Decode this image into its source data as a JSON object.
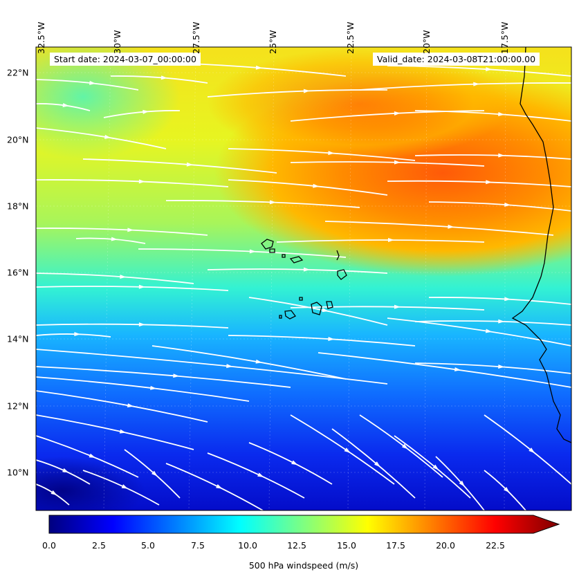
{
  "map": {
    "start_label": "Start date: 2024-03-07_00:00:00",
    "valid_label": "Valid_date: 2024-03-08T21:00:00.00",
    "lon_labels": [
      "32.5°W",
      "30°W",
      "27.5°W",
      "25°W",
      "22.5°W",
      "20°W",
      "17.5°W"
    ],
    "lat_labels": [
      "22°N",
      "20°N",
      "18°N",
      "16°N",
      "14°N",
      "12°N",
      "10°N"
    ],
    "field": "500 hPa windspeed",
    "streamline_color": "#ffffff",
    "coastline_color": "#000000"
  },
  "colorbar": {
    "label": "500 hPa windspeed (m/s)",
    "ticks": [
      "0.0",
      "2.5",
      "5.0",
      "7.5",
      "10.0",
      "12.5",
      "15.0",
      "17.5",
      "20.0",
      "22.5"
    ],
    "colormap": "jet",
    "extend": "max"
  }
}
